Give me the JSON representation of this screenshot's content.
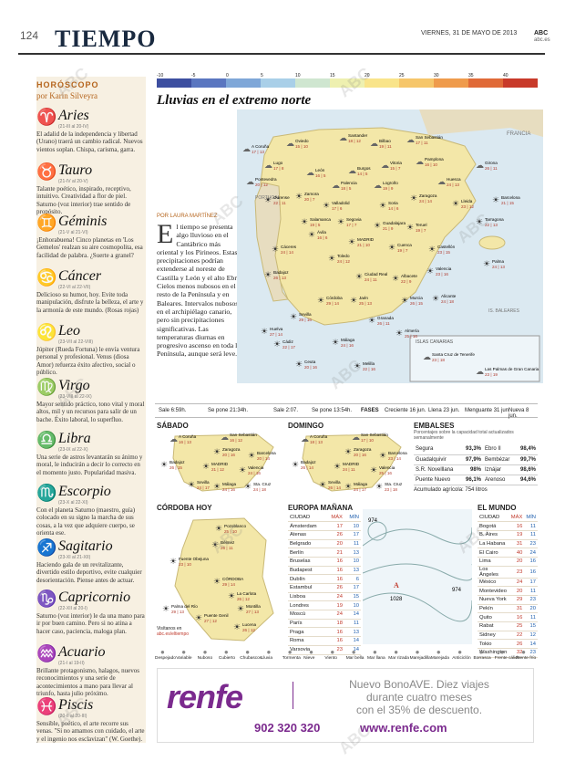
{
  "header": {
    "page": "124",
    "section": "TIEMPO",
    "date": "VIERNES, 31 DE MAYO DE 2013",
    "brand": "ABC",
    "site": "abc.es"
  },
  "horoscope": {
    "title": "HORÓSCOPO",
    "author": "por Karin Silveyra",
    "signs": [
      {
        "sym": "♈",
        "name": "Aries",
        "dates": "(21-III al 20-IV)",
        "text": "El adalid de la independencia y libertad (Urano) traerá un cambio radical. Nuevos vientos soplan. Chispa, carisma, garra."
      },
      {
        "sym": "♉",
        "name": "Tauro",
        "dates": "(21-IV al 20-V)",
        "text": "Talante poético, inspirado, receptivo, intuitivo. Creatividad a flor de piel. Saturno (voz interior) trae sentido de propósito."
      },
      {
        "sym": "♊",
        "name": "Géminis",
        "dates": "(21-V al 21-VI)",
        "text": "¡Enhorabuena! Cinco planetas en 'Los Gemelos' realzan su aire cosmopolita, esa facilidad de palabra. ¿Suerte a granel?"
      },
      {
        "sym": "♋",
        "name": "Cáncer",
        "dates": "(22-VI al 22-VII)",
        "text": "Delicioso su humor, hoy. Evite toda manipulación, disfrute la belleza, el arte y la armonía de este mundo. (Rosas rojas)"
      },
      {
        "sym": "♌",
        "name": "Leo",
        "dates": "(23-VII al 22-VIII)",
        "text": "Júpiter (Rueda Fortuna) le envía ventura personal y profesional. Venus (diosa Amor) refuerza éxito afectivo, social o público."
      },
      {
        "sym": "♍",
        "name": "Virgo",
        "dates": "(23-VIII al 22-IX)",
        "text": "Mayor sentido práctico, tono vital y moral altos, mil y un recursos para salir de un bache. Éxito laboral, lo superfluo."
      },
      {
        "sym": "♎",
        "name": "Libra",
        "dates": "(23-IX al 22-X)",
        "text": "Una serie de astros levantarán su ánimo y moral, le inducirán a decir lo correcto en el momento justo. Popularidad masiva."
      },
      {
        "sym": "♏",
        "name": "Escorpio",
        "dates": "(23-X al 22-XI)",
        "text": "Con el planeta Saturno (maestro, guía) colocado en su signo la marcha de sus cosas, a la vez que adquiere cuerpo, se orienta ese."
      },
      {
        "sym": "♐",
        "name": "Sagitario",
        "dates": "(23-XI al 21-XII)",
        "text": "Haciendo gala de un revitalizante, divertido estilo deportivo, evite cualquier desorientación. Piense antes de actuar."
      },
      {
        "sym": "♑",
        "name": "Capricornio",
        "dates": "(22-XII al 20-I)",
        "text": "Saturno (voz interior) le da una mano para ir por buen camino. Pero si no atina a hacer caso, paciencia, maloga plan."
      },
      {
        "sym": "♒",
        "name": "Acuario",
        "dates": "(21-I al 19-II)",
        "text": "Brillante protagonismo, halagos, nuevos reconocimientos y una serie de acontecimientos a mano para llevar al triunfo, hasta julio próximo."
      },
      {
        "sym": "♓",
        "name": "Piscis",
        "dates": "(20-II al 20-III)",
        "text": "Sensible, poético, el arte recorre sus venas. \"Si no amamos con cuidado, el arte y el ingenio nos esclavizan\" (W. Goethe)."
      }
    ]
  },
  "scale": {
    "labels": [
      "-10",
      "-5",
      "0",
      "5",
      "10",
      "15",
      "20",
      "25",
      "30",
      "35",
      "40"
    ],
    "colors": [
      "#3d4fa0",
      "#5a76c0",
      "#7fa7d8",
      "#a9cfe8",
      "#cfe6d0",
      "#eef0b0",
      "#f9e48a",
      "#f6c66a",
      "#ef9b4c",
      "#e06a38",
      "#c83a2a"
    ]
  },
  "map": {
    "title": "Lluvias en el extremo norte",
    "byline": "POR LAURA MARTÍNEZ",
    "lead_drop": "E",
    "lead": "l tiempo se presenta algo lluvioso en el Cantábrico más oriental y los Pirineos. Estas precipitaciones podrían extenderse al noreste de Castilla y León y el alto Ebro. Cielos menos nubosos en el resto de la Península y en Baleares. Intervalos nubosos en el archipiélago canario, pero sin precipitaciones significativas. Las temperaturas diurnas en progresivo ascenso en toda la Península, aunque será leve.",
    "cities": [
      {
        "n": "A Coruña",
        "t": "17 | 13"
      },
      {
        "n": "Oviedo",
        "t": "15 | 10"
      },
      {
        "n": "Santander",
        "t": "18 | 12"
      },
      {
        "n": "Bilbao",
        "t": "19 | 11"
      },
      {
        "n": "San Sebastián",
        "t": "17 | 11"
      },
      {
        "n": "Lugo",
        "t": "17 | 8"
      },
      {
        "n": "León",
        "t": "16 | 5"
      },
      {
        "n": "Burgos",
        "t": "14 | 5"
      },
      {
        "n": "Vitoria",
        "t": "15 | 7"
      },
      {
        "n": "Pamplona",
        "t": "16 | 10"
      },
      {
        "n": "Huesca",
        "t": "24 | 13"
      },
      {
        "n": "Girona",
        "t": "26 | 11"
      },
      {
        "n": "Pontevedra",
        "t": "20 | 12"
      },
      {
        "n": "Ourense",
        "t": "22 | 11"
      },
      {
        "n": "Palencia",
        "t": "18 | 5"
      },
      {
        "n": "Logroño",
        "t": "19 | 9"
      },
      {
        "n": "Zaragoza",
        "t": "24 | 14"
      },
      {
        "n": "Lleida",
        "t": "23 | 12"
      },
      {
        "n": "Barcelona",
        "t": "21 | 15"
      },
      {
        "n": "Zamora",
        "t": "20 | 7"
      },
      {
        "n": "Valladolid",
        "t": "17 | 6"
      },
      {
        "n": "Soria",
        "t": "14 | 6"
      },
      {
        "n": "Tarragona",
        "t": "22 | 13"
      },
      {
        "n": "Salamanca",
        "t": "19 | 5"
      },
      {
        "n": "Segovia",
        "t": "17 | 7"
      },
      {
        "n": "Guadalajara",
        "t": "21 | 9"
      },
      {
        "n": "Teruel",
        "t": "19 | 7"
      },
      {
        "n": "Ávila",
        "t": "16 | 6"
      },
      {
        "n": "MADRID",
        "t": "21 | 10"
      },
      {
        "n": "Cuenca",
        "t": "19 | 7"
      },
      {
        "n": "Castellón",
        "t": "23 | 15"
      },
      {
        "n": "Palma",
        "t": "24 | 13"
      },
      {
        "n": "Cáceres",
        "t": "24 | 14"
      },
      {
        "n": "Toledo",
        "t": "24 | 12"
      },
      {
        "n": "Valencia",
        "t": "23 | 16"
      },
      {
        "n": "Badajoz",
        "t": "26 | 13"
      },
      {
        "n": "Ciudad Real",
        "t": "24 | 11"
      },
      {
        "n": "Albacete",
        "t": "22 | 9"
      },
      {
        "n": "Alicante",
        "t": "24 | 18"
      },
      {
        "n": "Córdoba",
        "t": "29 | 14"
      },
      {
        "n": "Jaén",
        "t": "25 | 13"
      },
      {
        "n": "Murcia",
        "t": "26 | 15"
      },
      {
        "n": "Sevilla",
        "t": "29 | 16"
      },
      {
        "n": "Granada",
        "t": "26 | 11"
      },
      {
        "n": "Huelva",
        "t": "27 | 14"
      },
      {
        "n": "Almería",
        "t": "25 | 16"
      },
      {
        "n": "Cádiz",
        "t": "22 | 17"
      },
      {
        "n": "Málaga",
        "t": "24 | 16"
      },
      {
        "n": "Ceuta",
        "t": "20 | 16"
      },
      {
        "n": "Melilla",
        "t": "22 | 16"
      }
    ],
    "regions": {
      "france": "FRANCIA",
      "portugal": "PORTUGAL",
      "baleares": "IS. BALEARES",
      "canarias": "ISLAS CANARIAS"
    },
    "canarias": [
      {
        "n": "Santa Cruz de Tenerife",
        "t": "23 | 18"
      },
      {
        "n": "Las Palmas de Gran Canaria",
        "t": "23 | 19"
      }
    ]
  },
  "sunbar": {
    "sale": "Sale 6:59h.",
    "pone": "Se pone 21:34h.",
    "luna_sale": "Sale 2:07.",
    "luna_pone": "Se pone 13:54h.",
    "fases": "FASES",
    "creciente": "Creciente 16 jun.",
    "llena": "Llena 23 jun.",
    "menguante": "Menguante 31 jun.",
    "nueva": "Nueva 8 jun."
  },
  "sabado": {
    "title": "SÁBADO",
    "cities": [
      {
        "n": "A Coruña",
        "t": "16 | 13"
      },
      {
        "n": "San Sebastián",
        "t": "16 | 12"
      },
      {
        "n": "Zaragoza",
        "t": "20 | 16"
      },
      {
        "n": "Barcelona",
        "t": "20 | 14"
      },
      {
        "n": "Badajoz",
        "t": "26 | 15"
      },
      {
        "n": "MADRID",
        "t": "21 | 12"
      },
      {
        "n": "Valencia",
        "t": "24 | 16"
      },
      {
        "n": "Sevilla",
        "t": "24 | 17"
      },
      {
        "n": "Málaga",
        "t": "24 | 16"
      },
      {
        "n": "Sta. Cruz",
        "t": "24 | 18"
      }
    ]
  },
  "domingo": {
    "title": "DOMINGO",
    "cities": [
      {
        "n": "A Coruña",
        "t": "18 | 13"
      },
      {
        "n": "San Sebastián",
        "t": "17 | 10"
      },
      {
        "n": "Zaragoza",
        "t": "20 | 16"
      },
      {
        "n": "Barcelona",
        "t": "23 | 14"
      },
      {
        "n": "Badajoz",
        "t": "26 | 14"
      },
      {
        "n": "MADRID",
        "t": "24 | 11"
      },
      {
        "n": "Valencia",
        "t": "25 | 16"
      },
      {
        "n": "Sevilla",
        "t": "26 | 14"
      },
      {
        "n": "Málaga",
        "t": "24 | 17"
      },
      {
        "n": "Sta. Cruz",
        "t": "23 | 18"
      }
    ]
  },
  "embalses": {
    "title": "EMBALSES",
    "sub": "Porcentajes sobre la capacidad total actualizados semanalmente",
    "rows": [
      [
        "Segura",
        "93,3%",
        "Ebro II",
        "98,4%"
      ],
      [
        "Guadalquivir",
        "97,9%",
        "Bembézar",
        "99,7%"
      ],
      [
        "S.R. Novelllana",
        "98%",
        "Iznájar",
        "98,6%"
      ],
      [
        "Puente Nuevo",
        "96,1%",
        "Arenoso",
        "94,6%"
      ]
    ],
    "total": "Acumulado agrícola: 754 litros"
  },
  "cordoba": {
    "title": "CÓRDOBA HOY",
    "places": [
      {
        "n": "Pozoblanco",
        "t": "25 | 10"
      },
      {
        "n": "Bélmez",
        "t": "26 | 11"
      },
      {
        "n": "Fuente Obejuna",
        "t": "23 | 10"
      },
      {
        "n": "CÓRDOBA",
        "t": "29 | 14"
      },
      {
        "n": "La Carlota",
        "t": "26 | 12"
      },
      {
        "n": "Palma del Río",
        "t": "29 | 13"
      },
      {
        "n": "Puente Genil",
        "t": "27 | 12"
      },
      {
        "n": "Montilla",
        "t": "27 | 13"
      },
      {
        "n": "Lucena",
        "t": "26 | 12"
      }
    ],
    "note": "Visítanos en",
    "note2": "abc.es/eltiempo"
  },
  "europa": {
    "title": "EUROPA MAÑANA",
    "headers": [
      "CIUDAD",
      "MÁX",
      "MÍN"
    ],
    "rows": [
      [
        "Ámsterdam",
        "17",
        "10"
      ],
      [
        "Atenas",
        "26",
        "17"
      ],
      [
        "Belgrado",
        "20",
        "11"
      ],
      [
        "Berlín",
        "21",
        "13"
      ],
      [
        "Bruselas",
        "16",
        "10"
      ],
      [
        "Budapest",
        "16",
        "13"
      ],
      [
        "Dublín",
        "16",
        "6"
      ],
      [
        "Estambul",
        "26",
        "17"
      ],
      [
        "Lisboa",
        "24",
        "15"
      ],
      [
        "Londres",
        "19",
        "10"
      ],
      [
        "Moscú",
        "24",
        "14"
      ],
      [
        "París",
        "18",
        "11"
      ],
      [
        "Praga",
        "16",
        "13"
      ],
      [
        "Roma",
        "16",
        "14"
      ],
      [
        "Varsovia",
        "23",
        "14"
      ]
    ],
    "pressure": [
      "974",
      "1028",
      "974"
    ]
  },
  "mundo": {
    "title": "EL MUNDO",
    "headers": [
      "CIUDAD",
      "MÁX",
      "MÍN"
    ],
    "rows": [
      [
        "Bogotá",
        "16",
        "11"
      ],
      [
        "B. Aires",
        "19",
        "11"
      ],
      [
        "La Habana",
        "31",
        "23"
      ],
      [
        "El Cairo",
        "40",
        "24"
      ],
      [
        "Lima",
        "20",
        "16"
      ],
      [
        "Los Ángeles",
        "23",
        "16"
      ],
      [
        "México",
        "24",
        "17"
      ],
      [
        "Montevideo",
        "20",
        "11"
      ],
      [
        "Nueva York",
        "29",
        "23"
      ],
      [
        "Pekín",
        "31",
        "20"
      ],
      [
        "Quito",
        "16",
        "11"
      ],
      [
        "Rabat",
        "25",
        "15"
      ],
      [
        "Sidney",
        "22",
        "12"
      ],
      [
        "Tokio",
        "26",
        "14"
      ],
      [
        "Washington",
        "32",
        "23"
      ]
    ]
  },
  "legend": [
    "Despejado",
    "Variable",
    "Nuboso",
    "Cubierto",
    "Chubascos",
    "Lluvia",
    "Tormenta",
    "Nieve",
    "Viento",
    "Mar bella",
    "Mar llana",
    "Mar rizada",
    "Marejadilla",
    "Marejada",
    "Anticiclón",
    "Borrasca",
    "Frente cálido",
    "Frente frío"
  ],
  "ad": {
    "logo": "renfe",
    "line1": "Nuevo BonoAVE. Diez viajes",
    "line2": "durante cuatro meses",
    "line3": "con el 35% de descuento.",
    "phone": "902 320 320",
    "web": "www.renfe.com"
  },
  "watermark": "ABC"
}
